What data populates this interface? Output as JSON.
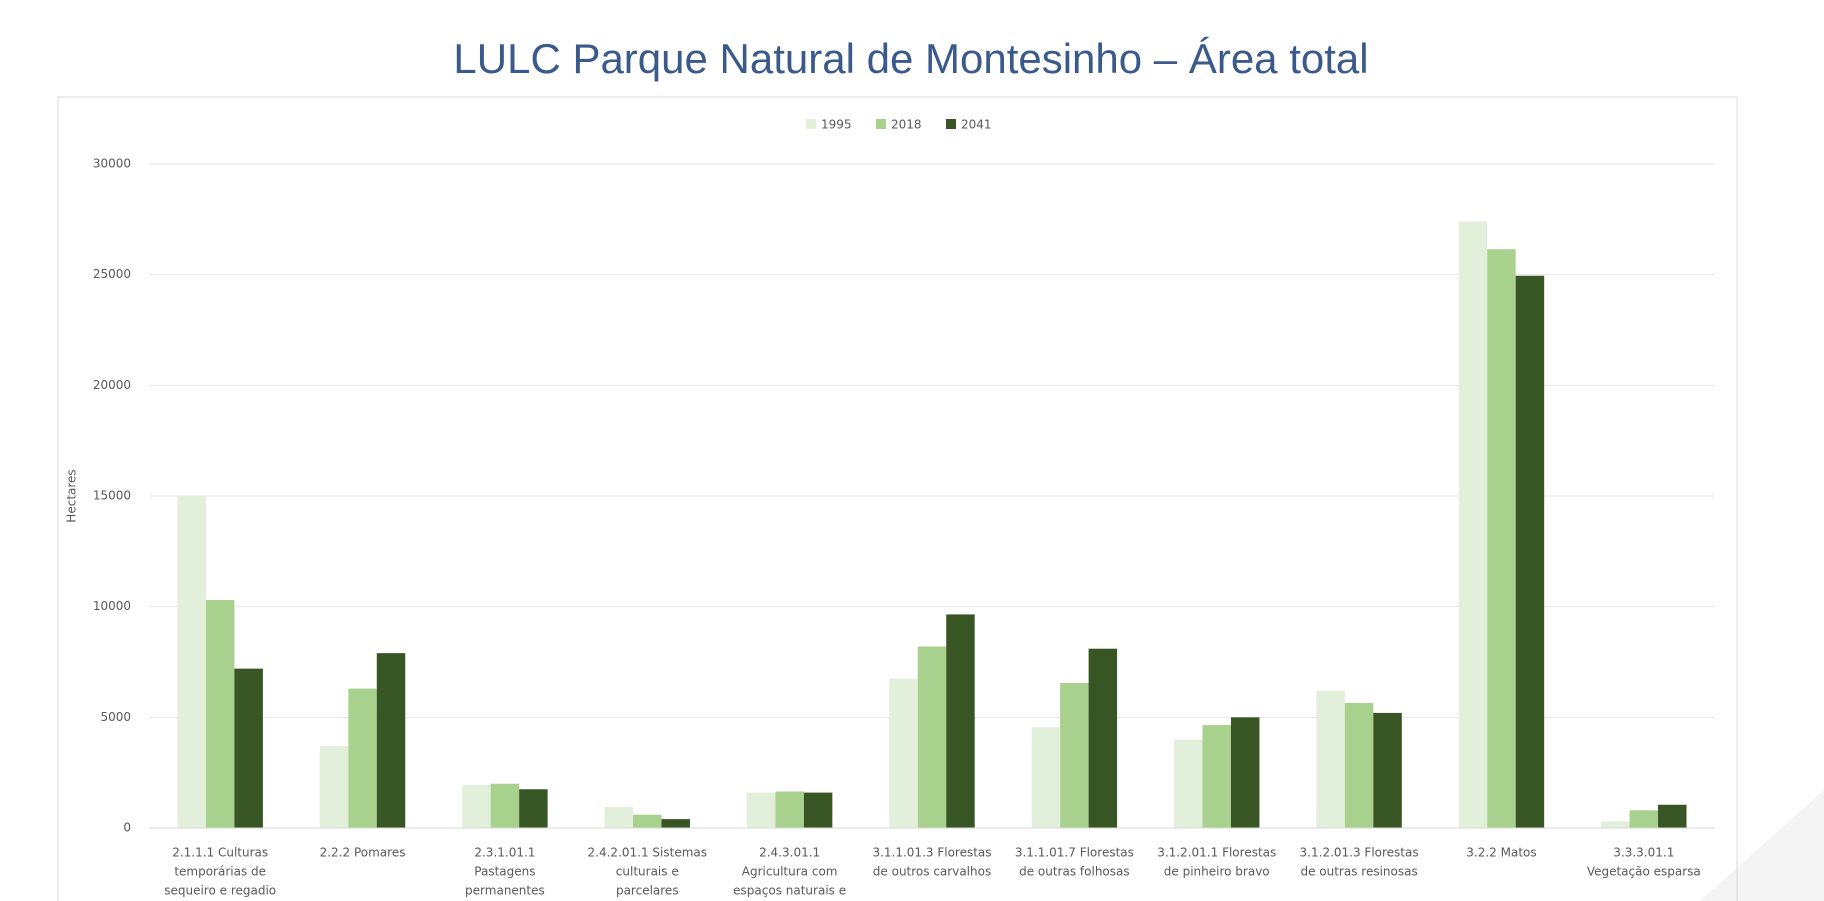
{
  "chart_data": {
    "type": "bar",
    "title": "LULC Parque Natural de Montesinho – Área total",
    "y_label": "Hectares",
    "categories": [
      [
        "2.1.1.1 Culturas",
        "temporárias de",
        "sequeiro e regadio"
      ],
      [
        "2.2.2 Pomares"
      ],
      [
        "2.3.1.01.1",
        "Pastagens",
        "permanentes"
      ],
      [
        "2.4.2.01.1 Sistemas",
        "culturais e",
        "parcelares"
      ],
      [
        "2.4.3.01.1",
        "Agricultura com",
        "espaços naturais e"
      ],
      [
        "3.1.1.01.3 Florestas",
        "de outros carvalhos"
      ],
      [
        "3.1.1.01.7 Florestas",
        "de outras folhosas"
      ],
      [
        "3.1.2.01.1 Florestas",
        "de pinheiro bravo"
      ],
      [
        "3.1.2.01.3 Florestas",
        "de outras resinosas"
      ],
      [
        "3.2.2 Matos"
      ],
      [
        "3.3.3.01.1",
        "Vegetação esparsa"
      ]
    ],
    "series": [
      {
        "name": "1995",
        "color": "#e2efda",
        "values": [
          15000,
          3700,
          1950,
          950,
          1600,
          6750,
          4550,
          4000,
          6200,
          27400,
          300
        ]
      },
      {
        "name": "2018",
        "color": "#a9d18e",
        "values": [
          10300,
          6300,
          2000,
          600,
          1650,
          8200,
          6550,
          4650,
          5650,
          26150,
          800
        ]
      },
      {
        "name": "2041",
        "color": "#375623",
        "values": [
          7200,
          7900,
          1750,
          400,
          1600,
          9650,
          8100,
          5000,
          5200,
          24950,
          1050
        ]
      }
    ],
    "ylim": [
      0,
      30000
    ],
    "yticks": [
      0,
      5000,
      10000,
      15000,
      20000,
      25000,
      30000
    ],
    "grid": true,
    "legend": "top"
  }
}
